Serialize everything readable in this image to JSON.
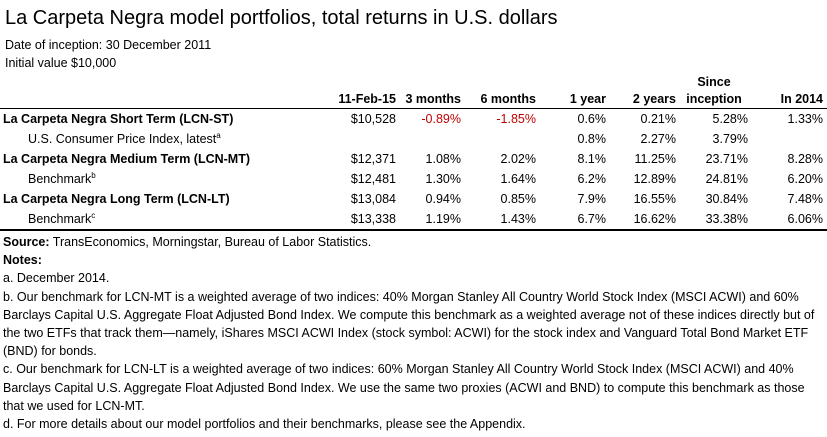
{
  "title": "La Carpeta Negra model portfolios, total returns in U.S. dollars",
  "inception": "Date of inception: 30 December 2011",
  "initial_value": "Initial value $10,000",
  "columns": {
    "date": "11-Feb-15",
    "m3": "3 months",
    "m6": "6 months",
    "y1": "1 year",
    "y2": "2 years",
    "since_top": "Since",
    "since_bottom": "inception",
    "ytd": "In 2014"
  },
  "rows": [
    {
      "label": "La Carpeta Negra Short Term (LCN-ST)",
      "sup": "",
      "value": "$10,528",
      "m3": "-0.89%",
      "m6": "-1.85%",
      "y1": "0.6%",
      "y2": "0.21%",
      "since": "5.28%",
      "ytd": "1.33%"
    },
    {
      "label": "U.S. Consumer Price Index, latest",
      "sup": "a",
      "value": "",
      "m3": "",
      "m6": "",
      "y1": "0.8%",
      "y2": "2.27%",
      "since": "3.79%",
      "ytd": ""
    },
    {
      "label": "La Carpeta Negra Medium Term (LCN-MT)",
      "sup": "",
      "value": "$12,371",
      "m3": "1.08%",
      "m6": "2.02%",
      "y1": "8.1%",
      "y2": "11.25%",
      "since": "23.71%",
      "ytd": "8.28%"
    },
    {
      "label": "Benchmark",
      "sup": "b",
      "value": "$12,481",
      "m3": "1.30%",
      "m6": "1.64%",
      "y1": "6.2%",
      "y2": "12.89%",
      "since": "24.81%",
      "ytd": "6.20%"
    },
    {
      "label": "La Carpeta Negra Long Term (LCN-LT)",
      "sup": "",
      "value": "$13,084",
      "m3": "0.94%",
      "m6": "0.85%",
      "y1": "7.9%",
      "y2": "16.55%",
      "since": "30.84%",
      "ytd": "7.48%"
    },
    {
      "label": "Benchmark",
      "sup": "c",
      "value": "$13,338",
      "m3": "1.19%",
      "m6": "1.43%",
      "y1": "6.7%",
      "y2": "16.62%",
      "since": "33.38%",
      "ytd": "6.06%"
    }
  ],
  "source_label": "Source:",
  "source_text": " TransEconomics, Morningstar, Bureau of Labor Statistics.",
  "notes_label": "Notes:",
  "notes": {
    "a": "a. December 2014.",
    "b": "b. Our benchmark for LCN-MT is a weighted average of two indices: 40% Morgan Stanley All Country World Stock Index (MSCI ACWI) and 60% Barclays Capital U.S. Aggregate Float Adjusted Bond Index. We compute this benchmark as a weighted average not of these indices directly but of the two ETFs that track them—namely, iShares MSCI ACWI Index (stock symbol: ACWI) for the stock index and Vanguard Total Bond Market ETF (BND) for bonds.",
    "c": "c. Our benchmark for LCN-LT is a weighted average of two indices: 60% Morgan Stanley All Country World Stock Index (MSCI ACWI) and 40% Barclays Capital U.S. Aggregate Float Adjusted Bond Index. We use the same two proxies (ACWI and BND) to compute this benchmark as those that we used for LCN-MT.",
    "d": "d. For more details about our model portfolios and their benchmarks, please see the Appendix."
  },
  "colors": {
    "negative": "#c00000"
  }
}
